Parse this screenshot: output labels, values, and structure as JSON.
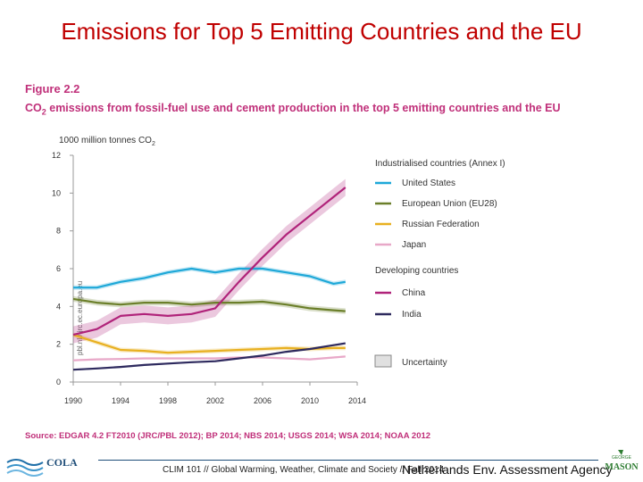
{
  "slide": {
    "title": "Emissions for Top 5 Emitting Countries and the EU",
    "figure_label": "Figure 2.2",
    "caption_prefix": "CO",
    "caption_sub": "2",
    "caption_rest": " emissions from fossil-fuel use and cement production in the top 5 emitting countries and the EU",
    "units_prefix": "1000 million tonnes CO",
    "units_sub": "2",
    "watermark": "pbl.nl / jrc.ec.europa.eu",
    "source": "Source: EDGAR 4.2 FT2010 (JRC/PBL 2012); BP 2014; NBS 2014; USGS 2014; WSA 2014; NOAA 2012",
    "footer": "CLIM 101 // Global Warming, Weather, Climate and Society // Fall 2014",
    "agency": "Netherlands Env. Assessment Agency",
    "logo_left": "COLA",
    "logo_right_top": "GEORGE",
    "logo_right_bottom": "MASON"
  },
  "chart_data": {
    "type": "line",
    "ylim": [
      0,
      12
    ],
    "xlim": [
      1990,
      2014
    ],
    "yticks": [
      "0",
      "2",
      "4",
      "6",
      "8",
      "10",
      "12"
    ],
    "xticks": [
      "1990",
      "1994",
      "1998",
      "2002",
      "2006",
      "2010",
      "2014"
    ],
    "x": [
      1990,
      1992,
      1994,
      1996,
      1998,
      2000,
      2002,
      2004,
      2006,
      2008,
      2010,
      2012,
      2013
    ],
    "legend_groups": {
      "industrialised": "Industrialised countries (Annex I)",
      "developing": "Developing countries"
    },
    "series": [
      {
        "name": "United States",
        "group": "industrialised",
        "color": "#1ea8d8",
        "band": 0.12,
        "values": [
          5.0,
          5.0,
          5.3,
          5.5,
          5.8,
          6.0,
          5.8,
          6.0,
          6.0,
          5.8,
          5.6,
          5.2,
          5.3
        ]
      },
      {
        "name": "European Union (EU28)",
        "group": "industrialised",
        "color": "#6b7f2a",
        "band": 0.15,
        "values": [
          4.4,
          4.2,
          4.1,
          4.2,
          4.2,
          4.1,
          4.2,
          4.2,
          4.25,
          4.1,
          3.9,
          3.8,
          3.75
        ]
      },
      {
        "name": "Russian Federation",
        "group": "industrialised",
        "color": "#e8b020",
        "band": 0.12,
        "values": [
          2.5,
          2.1,
          1.7,
          1.65,
          1.55,
          1.6,
          1.65,
          1.7,
          1.75,
          1.8,
          1.75,
          1.8,
          1.8
        ]
      },
      {
        "name": "Japan",
        "group": "industrialised",
        "color": "#e8a8c8",
        "band": 0.05,
        "values": [
          1.15,
          1.2,
          1.22,
          1.25,
          1.25,
          1.25,
          1.25,
          1.3,
          1.3,
          1.25,
          1.2,
          1.3,
          1.35
        ]
      },
      {
        "name": "China",
        "group": "developing",
        "color": "#b0237a",
        "band": 0.45,
        "values": [
          2.5,
          2.8,
          3.5,
          3.6,
          3.5,
          3.6,
          3.9,
          5.3,
          6.6,
          7.8,
          8.8,
          9.8,
          10.3
        ]
      },
      {
        "name": "India",
        "group": "developing",
        "color": "#2e2a5e",
        "band": 0.05,
        "values": [
          0.65,
          0.72,
          0.8,
          0.9,
          0.98,
          1.05,
          1.1,
          1.25,
          1.4,
          1.6,
          1.75,
          1.95,
          2.05
        ]
      }
    ],
    "uncertainty_label": "Uncertainty"
  }
}
